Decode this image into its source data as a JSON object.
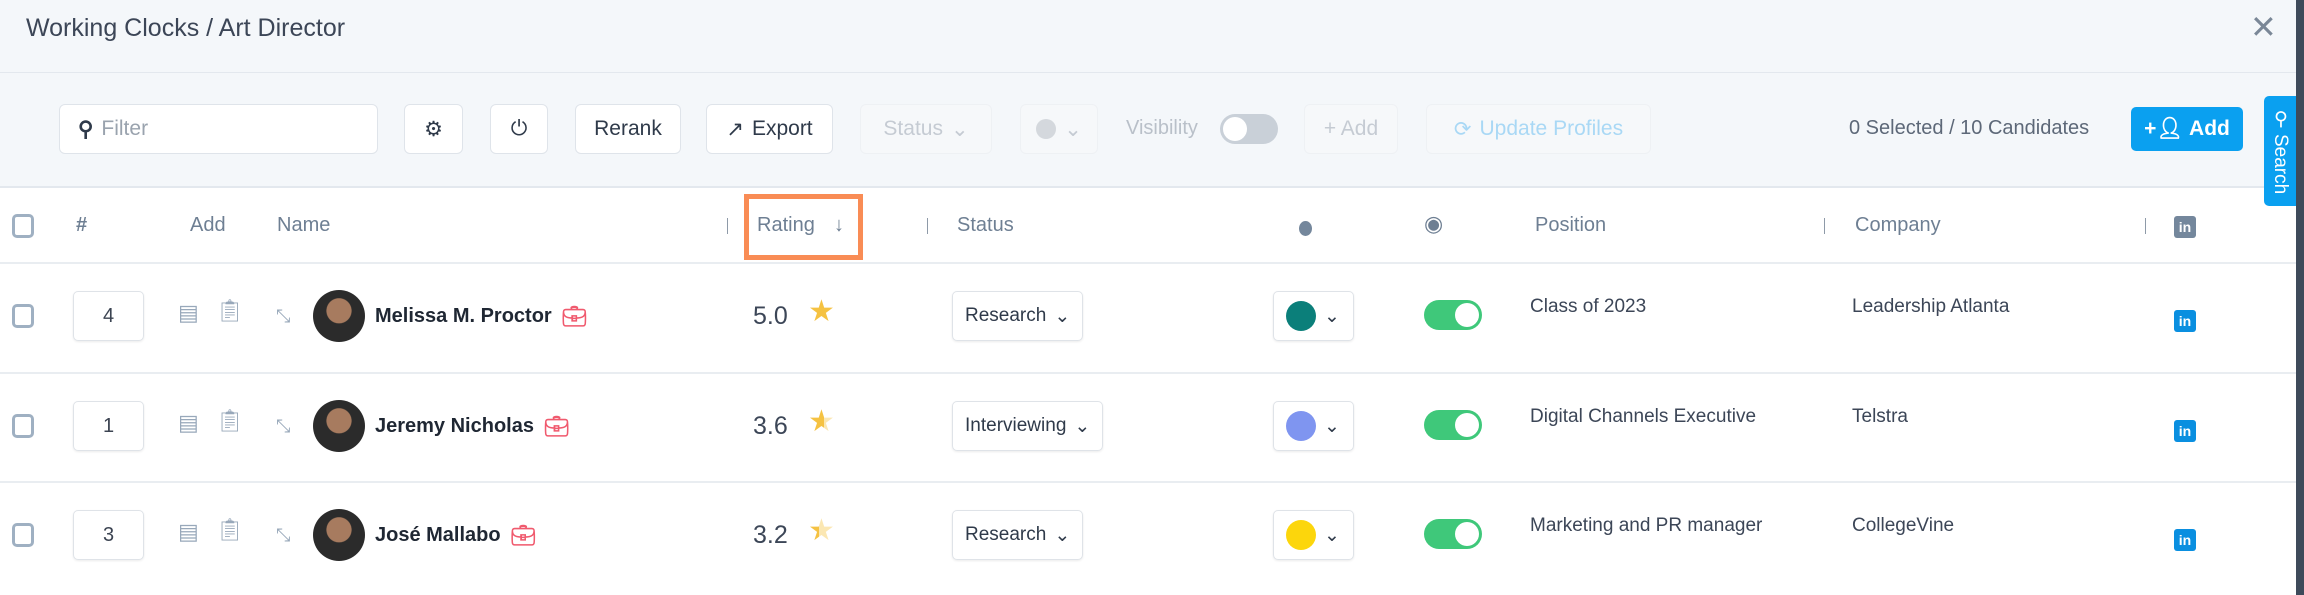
{
  "header": {
    "title": "Working Clocks / Art Director",
    "close_icon": "close-icon"
  },
  "toolbar": {
    "filter_placeholder": "Filter",
    "rerank": "Rerank",
    "export": "Export",
    "status": "Status",
    "visibility": "Visibility",
    "add_small": "+ Add",
    "update_profiles": "Update Profiles",
    "selected": "0 Selected / 10 Candidates",
    "add": "Add",
    "search_tab": "Search"
  },
  "table": {
    "headers": {
      "number": "#",
      "add": "Add",
      "name": "Name",
      "rating": "Rating",
      "status": "Status",
      "position": "Position",
      "company": "Company"
    },
    "rows": [
      {
        "rank": "4",
        "name": "Melissa M. Proctor",
        "rating": "5.0",
        "star_fill": 1.0,
        "status": "Research",
        "color": "#0b7f7a",
        "visible": true,
        "position": "Class of 2023",
        "company": "Leadership Atlanta"
      },
      {
        "rank": "1",
        "name": "Jeremy Nicholas",
        "rating": "3.6",
        "star_fill": 0.6,
        "status": "Interviewing",
        "color": "#7f95f0",
        "visible": true,
        "position": "Digital Channels Executive",
        "company": "Telstra"
      },
      {
        "rank": "3",
        "name": "José Mallabo",
        "rating": "3.2",
        "star_fill": 0.4,
        "status": "Research",
        "color": "#fcd60c",
        "visible": true,
        "position": "Marketing and PR manager",
        "company": "CollegeVine"
      }
    ]
  },
  "colors": {
    "accent": "#0aa0f0",
    "highlight": "#f98c55",
    "toggle_on": "#3fc87a",
    "star": "#f5c242"
  }
}
